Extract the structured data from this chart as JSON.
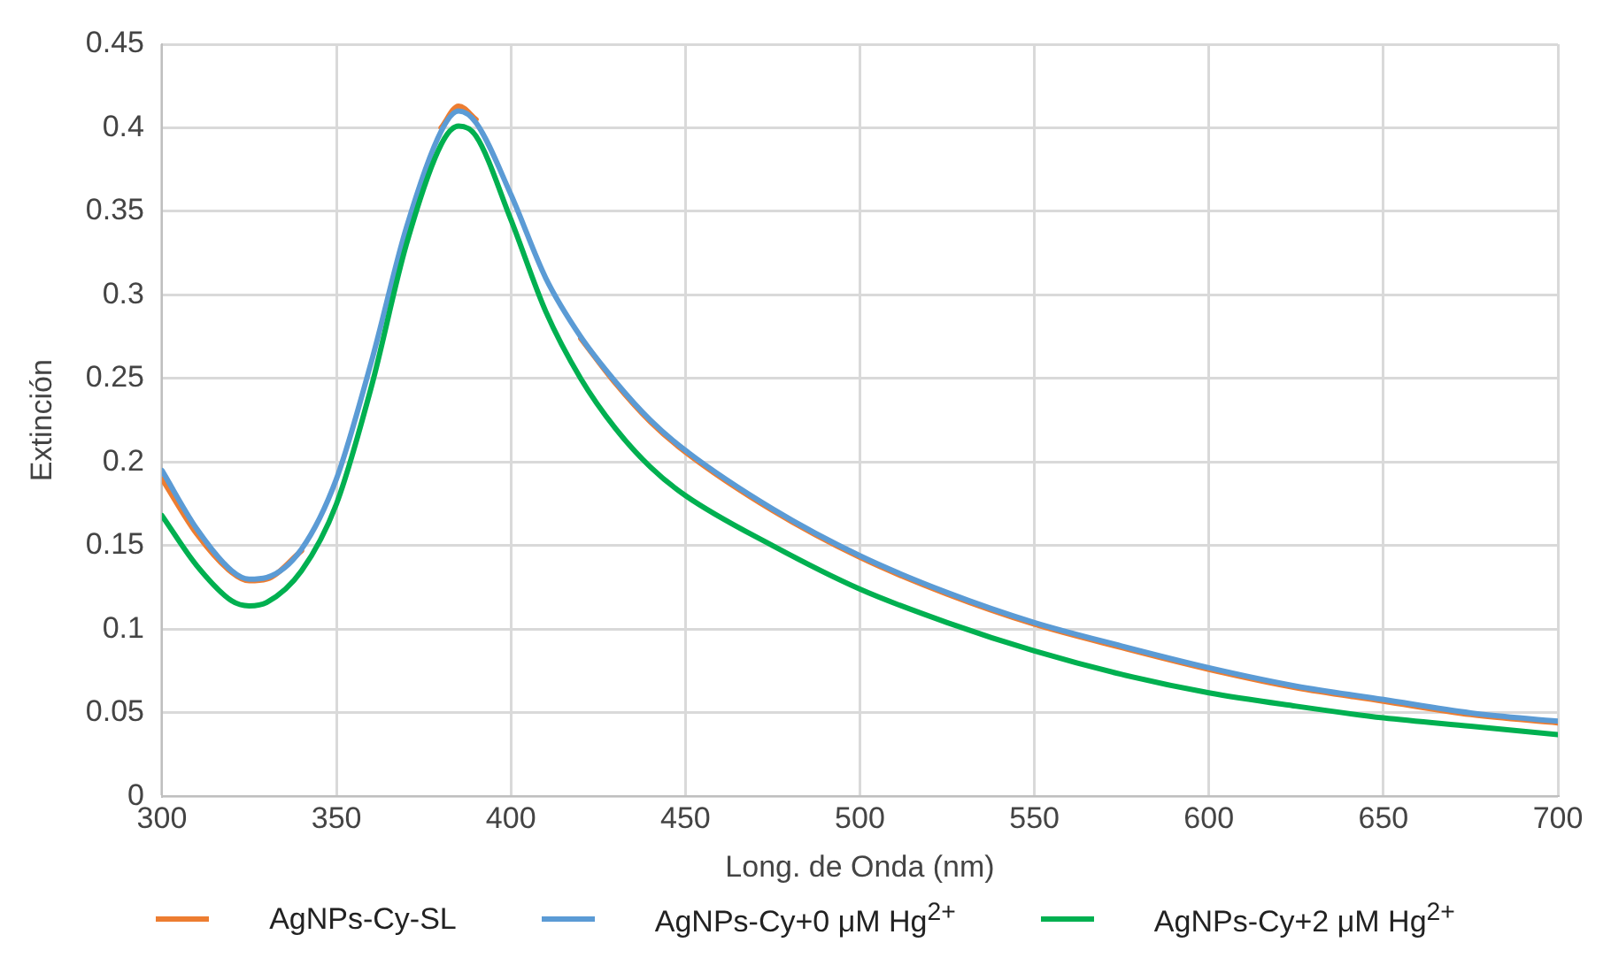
{
  "chart_data": {
    "type": "line",
    "xlabel": "Long. de Onda (nm)",
    "ylabel": "Extinción",
    "x": [
      300,
      310,
      320,
      325,
      330,
      340,
      350,
      360,
      370,
      380,
      385,
      390,
      400,
      410,
      420,
      430,
      440,
      450,
      475,
      500,
      525,
      550,
      575,
      600,
      625,
      650,
      675,
      700
    ],
    "series": [
      {
        "name": "AgNPs-Cy-SL",
        "color": "#ed7d31",
        "values": [
          0.19,
          0.157,
          0.134,
          0.129,
          0.13,
          0.147,
          null,
          null,
          null,
          0.4,
          0.413,
          0.405,
          null,
          null,
          0.274,
          0.247,
          0.224,
          0.206,
          0.171,
          0.143,
          0.121,
          0.103,
          0.089,
          0.076,
          0.065,
          0.057,
          0.049,
          0.044
        ]
      },
      {
        "name": "AgNPs-Cy+0 μM Hg$^{2+}$",
        "color": "#5b9bd5",
        "values": [
          0.195,
          0.16,
          0.135,
          0.13,
          0.131,
          0.148,
          0.19,
          0.26,
          0.34,
          0.398,
          0.41,
          0.403,
          0.36,
          0.31,
          0.275,
          0.248,
          0.225,
          0.207,
          0.172,
          0.144,
          0.122,
          0.104,
          0.09,
          0.077,
          0.066,
          0.058,
          0.05,
          0.045
        ]
      },
      {
        "name": "AgNPs-Cy+2 μM Hg$^{2+}$",
        "color": "#00b050",
        "values": [
          0.168,
          0.138,
          0.117,
          0.114,
          0.116,
          0.135,
          0.175,
          0.245,
          0.33,
          0.39,
          0.401,
          0.395,
          0.345,
          0.29,
          0.25,
          0.22,
          0.197,
          0.18,
          0.15,
          0.124,
          0.104,
          0.087,
          0.073,
          0.062,
          0.054,
          0.047,
          0.042,
          0.037
        ]
      }
    ],
    "xlim": [
      300,
      700
    ],
    "xticks": [
      300,
      350,
      400,
      450,
      500,
      550,
      600,
      650,
      700
    ],
    "ylim": [
      0,
      0.45
    ],
    "yticks": [
      0,
      0.05,
      0.1,
      0.15,
      0.2,
      0.25,
      0.3,
      0.35,
      0.4,
      0.45
    ],
    "grid": true,
    "legend": "bottom",
    "marker": "none",
    "line_style": "solid"
  }
}
